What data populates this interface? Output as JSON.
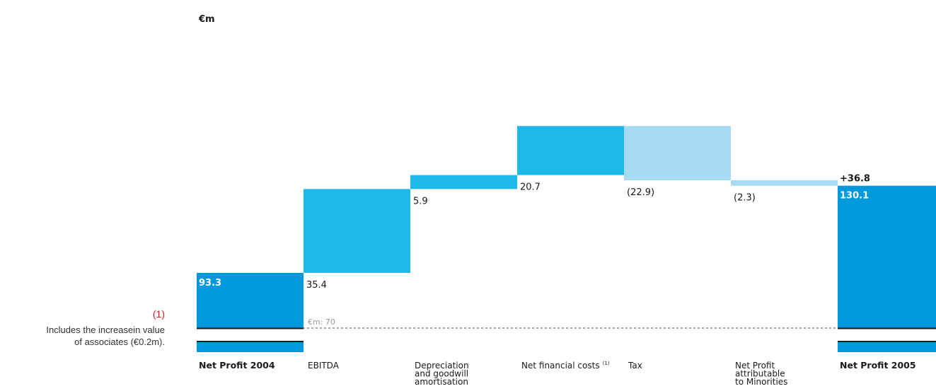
{
  "chart_data": {
    "type": "waterfall",
    "unit_label": "€m",
    "baseline_label": "€m: 70",
    "baseline_value": 70,
    "total_change_label": "+36.8",
    "steps": [
      {
        "name": "Net Profit 2004",
        "label_lines": [
          "Net Profit 2004"
        ],
        "kind": "total",
        "value": 93.3,
        "display": "93.3"
      },
      {
        "name": "EBITDA",
        "label_lines": [
          "EBITDA"
        ],
        "kind": "increase",
        "value": 35.4,
        "display": "35.4"
      },
      {
        "name": "Depreciation and goodwill amortisation",
        "label_lines": [
          "Depreciation",
          "and goodwill",
          "amortisation"
        ],
        "kind": "increase",
        "value": 5.9,
        "display": "5.9"
      },
      {
        "name": "Net financial costs",
        "label_lines": [
          "Net financial costs"
        ],
        "footnote_ref": "(1)",
        "kind": "increase",
        "value": 20.7,
        "display": "20.7"
      },
      {
        "name": "Tax",
        "label_lines": [
          "Tax"
        ],
        "kind": "decrease",
        "value": -22.9,
        "display": "(22.9)"
      },
      {
        "name": "Net Profit attributable to Minorities",
        "label_lines": [
          "Net Profit",
          "attributable",
          "to Minorities"
        ],
        "kind": "decrease",
        "value": -2.3,
        "display": "(2.3)"
      },
      {
        "name": "Net Profit 2005",
        "label_lines": [
          "Net Profit 2005"
        ],
        "kind": "total",
        "value": 130.1,
        "display": "130.1"
      }
    ],
    "colors": {
      "total": "#0099dc",
      "increase": "#1eb9e8",
      "decrease": "#a6dbf3",
      "axis": "#1a1a1a",
      "baseline_dash": "#555555"
    }
  },
  "footnote": {
    "number": "(1)",
    "lines": [
      "Includes the increasein value",
      "of associates (€0.2m)."
    ]
  }
}
